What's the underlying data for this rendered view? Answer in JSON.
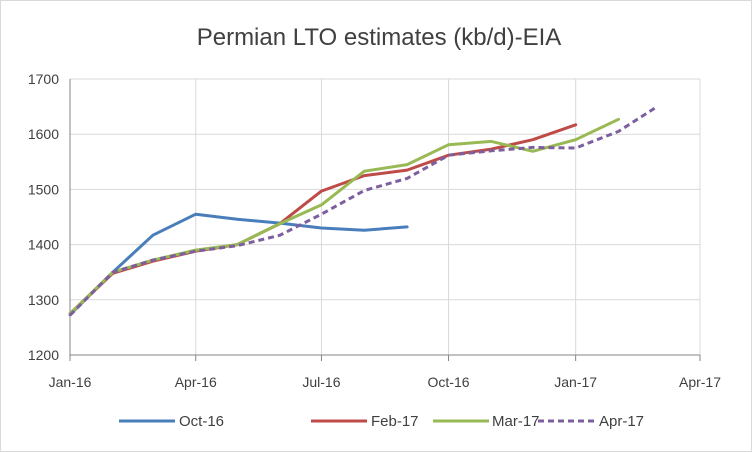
{
  "chart_data": {
    "type": "line",
    "title": "Permian LTO estimates (kb/d)-EIA",
    "xlabel": "",
    "ylabel": "",
    "ylim": [
      1200,
      1700
    ],
    "yticks": [
      1200,
      1300,
      1400,
      1500,
      1600,
      1700
    ],
    "xticks": [
      "Jan-16",
      "Apr-16",
      "Jul-16",
      "Oct-16",
      "Jan-17",
      "Apr-17"
    ],
    "grid": true,
    "legend": "bottom",
    "series": [
      {
        "name": "Oct-16",
        "color": "#4a7ebb",
        "dash": false,
        "x": [
          "2016-01-01",
          "2016-02-01",
          "2016-03-01",
          "2016-04-01",
          "2016-05-01",
          "2016-06-01",
          "2016-07-01",
          "2016-08-01",
          "2016-09-01"
        ],
        "values": [
          1273,
          1350,
          1417,
          1455,
          1446,
          1439,
          1430,
          1426,
          1432
        ]
      },
      {
        "name": "Feb-17",
        "color": "#be4b48",
        "dash": false,
        "x": [
          "2016-01-01",
          "2016-02-01",
          "2016-03-01",
          "2016-04-01",
          "2016-05-01",
          "2016-06-01",
          "2016-07-01",
          "2016-08-01",
          "2016-09-01",
          "2016-10-01",
          "2016-11-01",
          "2016-12-01",
          "2017-01-01"
        ],
        "values": [
          1275,
          1348,
          1370,
          1388,
          1400,
          1438,
          1497,
          1525,
          1535,
          1562,
          1573,
          1590,
          1617
        ]
      },
      {
        "name": "Mar-17",
        "color": "#98b954",
        "dash": false,
        "x": [
          "2016-01-01",
          "2016-02-01",
          "2016-03-01",
          "2016-04-01",
          "2016-05-01",
          "2016-06-01",
          "2016-07-01",
          "2016-08-01",
          "2016-09-01",
          "2016-10-01",
          "2016-11-01",
          "2016-12-01",
          "2017-01-01",
          "2017-02-01"
        ],
        "values": [
          1275,
          1350,
          1372,
          1390,
          1400,
          1438,
          1472,
          1533,
          1545,
          1581,
          1587,
          1569,
          1590,
          1627
        ]
      },
      {
        "name": "Apr-17",
        "color": "#7d5fa0",
        "dash": true,
        "x": [
          "2016-01-01",
          "2016-02-01",
          "2016-03-01",
          "2016-04-01",
          "2016-05-01",
          "2016-06-01",
          "2016-07-01",
          "2016-08-01",
          "2016-09-01",
          "2016-10-01",
          "2016-11-01",
          "2016-12-01",
          "2017-01-01",
          "2017-02-01",
          "2017-03-01"
        ],
        "values": [
          1272,
          1350,
          1372,
          1388,
          1398,
          1417,
          1455,
          1498,
          1520,
          1562,
          1570,
          1576,
          1575,
          1605,
          1650
        ]
      }
    ]
  }
}
